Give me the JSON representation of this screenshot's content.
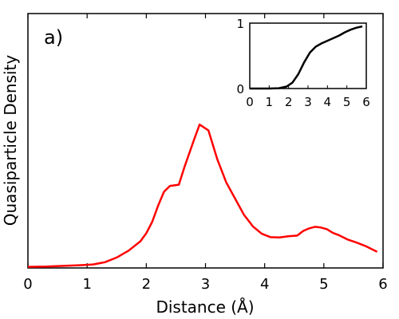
{
  "chart_data": [
    {
      "type": "line",
      "panel_label": "a)",
      "xlabel": "Distance (Å)",
      "ylabel": "Quasiparticle Density",
      "xlim": [
        0,
        6
      ],
      "ylim": [
        0,
        1.1
      ],
      "x_ticks": [
        0,
        1,
        2,
        3,
        4,
        5,
        6
      ],
      "y_ticks": [],
      "grid": false,
      "legend": "none",
      "series": [
        {
          "color": "#ff0000",
          "x": [
            0.0,
            0.3,
            0.6,
            0.9,
            1.1,
            1.3,
            1.5,
            1.7,
            1.9,
            2.0,
            2.1,
            2.2,
            2.3,
            2.4,
            2.55,
            2.65,
            2.8,
            2.9,
            3.05,
            3.2,
            3.35,
            3.5,
            3.65,
            3.8,
            3.95,
            4.1,
            4.25,
            4.4,
            4.55,
            4.65,
            4.75,
            4.85,
            4.95,
            5.05,
            5.15,
            5.25,
            5.4,
            5.55,
            5.7,
            5.9
          ],
          "y": [
            0.005,
            0.006,
            0.009,
            0.012,
            0.015,
            0.025,
            0.045,
            0.075,
            0.115,
            0.15,
            0.2,
            0.27,
            0.33,
            0.355,
            0.36,
            0.44,
            0.55,
            0.62,
            0.595,
            0.47,
            0.37,
            0.3,
            0.23,
            0.18,
            0.148,
            0.133,
            0.132,
            0.137,
            0.14,
            0.16,
            0.171,
            0.178,
            0.175,
            0.168,
            0.152,
            0.142,
            0.123,
            0.11,
            0.095,
            0.07
          ]
        }
      ]
    },
    {
      "type": "line",
      "inset": true,
      "xlabel": "",
      "ylabel": "",
      "xlim": [
        0,
        6
      ],
      "ylim": [
        0,
        1
      ],
      "x_ticks": [
        0,
        1,
        2,
        3,
        4,
        5,
        6
      ],
      "y_ticks": [
        0,
        1
      ],
      "grid": false,
      "legend": "none",
      "series": [
        {
          "color": "#000000",
          "x": [
            0.0,
            0.5,
            1.0,
            1.5,
            1.9,
            2.2,
            2.5,
            2.8,
            3.1,
            3.4,
            3.7,
            4.0,
            4.3,
            4.6,
            4.9,
            5.2,
            5.5,
            5.8
          ],
          "y": [
            0.0,
            0.0,
            0.0,
            0.005,
            0.03,
            0.09,
            0.22,
            0.4,
            0.55,
            0.64,
            0.69,
            0.73,
            0.77,
            0.81,
            0.86,
            0.9,
            0.93,
            0.95
          ]
        }
      ]
    }
  ]
}
